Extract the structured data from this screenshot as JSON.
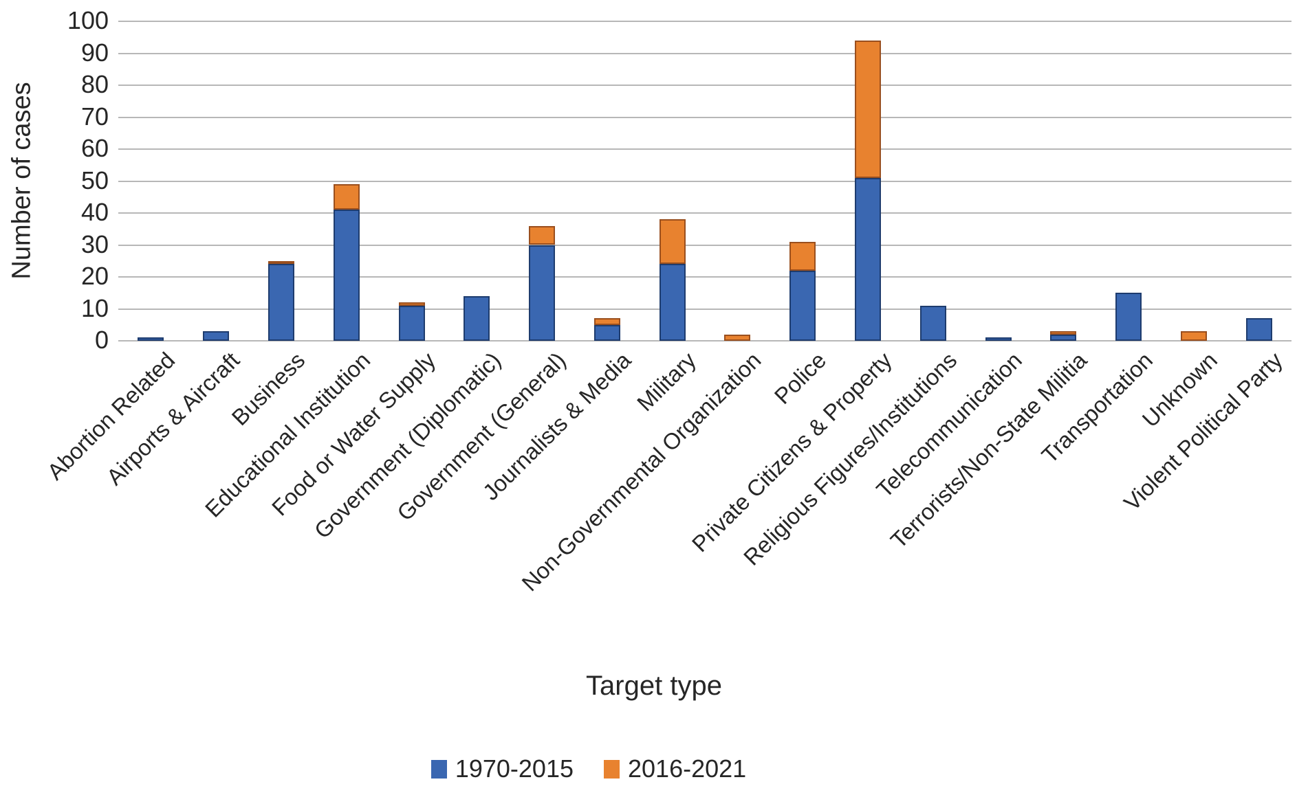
{
  "chart_data": {
    "type": "bar",
    "stacked": true,
    "xlabel": "Target type",
    "ylabel": "Number of cases",
    "ylim": [
      0,
      100
    ],
    "yticks": [
      0,
      10,
      20,
      30,
      40,
      50,
      60,
      70,
      80,
      90,
      100
    ],
    "grid": true,
    "legend_position": "bottom",
    "categories": [
      "Abortion Related",
      "Airports & Aircraft",
      "Business",
      "Educational Institution",
      "Food or Water Supply",
      "Government (Diplomatic)",
      "Government (General)",
      "Journalists & Media",
      "Military",
      "Non-Governmental Organization",
      "Police",
      "Private Citizens & Property",
      "Religious Figures/Institutions",
      "Telecommunication",
      "Terrorists/Non-State Militia",
      "Transportation",
      "Unknown",
      "Violent Political Party"
    ],
    "series": [
      {
        "name": "1970-2015",
        "color": "#3a67b1",
        "border_color": "#1e3c6e",
        "values": [
          1,
          3,
          24,
          41,
          11,
          14,
          30,
          5,
          24,
          0,
          22,
          51,
          11,
          1,
          2,
          15,
          0,
          7
        ]
      },
      {
        "name": "2016-2021",
        "color": "#e8822f",
        "border_color": "#9a4f1e",
        "values": [
          0,
          0,
          1,
          8,
          1,
          0,
          6,
          2,
          14,
          2,
          9,
          43,
          0,
          0,
          1,
          0,
          3,
          0
        ]
      }
    ],
    "gridline_color": "#b7b7b7"
  }
}
